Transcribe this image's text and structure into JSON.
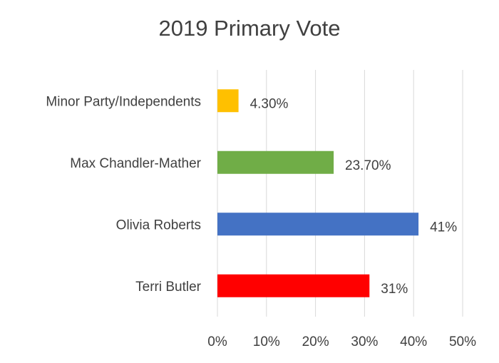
{
  "chart_data": {
    "type": "bar",
    "orientation": "horizontal",
    "title": "2019 Primary Vote",
    "categories": [
      "Minor Party/Independents",
      "Max Chandler-Mather",
      "Olivia Roberts",
      "Terri Butler"
    ],
    "values": [
      4.3,
      23.7,
      41,
      31
    ],
    "value_labels": [
      "4.30%",
      "23.70%",
      "41%",
      "31%"
    ],
    "bar_colors": [
      "#ffc000",
      "#70ad47",
      "#4472c4",
      "#ff0000"
    ],
    "xlim": [
      0,
      50
    ],
    "x_ticks": [
      0,
      10,
      20,
      30,
      40,
      50
    ],
    "x_tick_labels": [
      "0%",
      "10%",
      "20%",
      "30%",
      "40%",
      "50%"
    ],
    "xlabel": "",
    "ylabel": "",
    "grid": "vertical",
    "legend": "none"
  }
}
